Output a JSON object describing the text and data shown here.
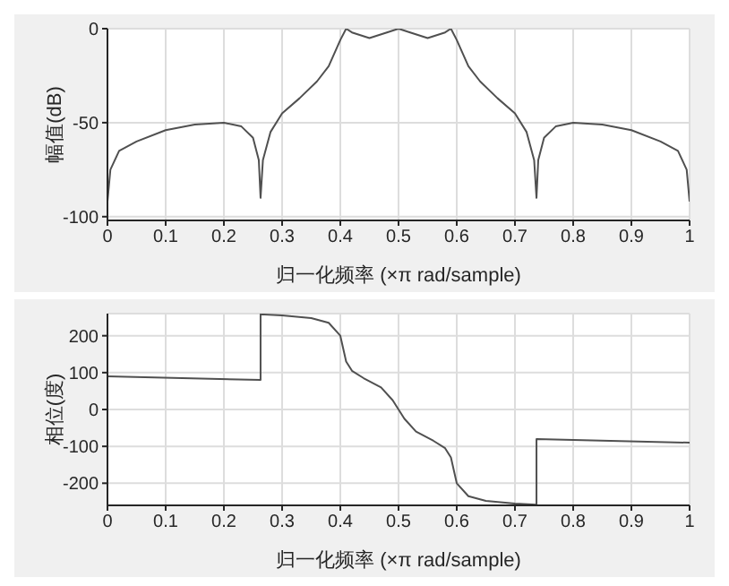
{
  "chart_data": [
    {
      "type": "line",
      "xlabel": "归一化频率  (×π rad/sample)",
      "ylabel": "幅值(dB)",
      "color": "#505050",
      "grid": true,
      "xlim": [
        0,
        1
      ],
      "xticks": [
        0,
        0.1,
        0.2,
        0.3,
        0.4,
        0.5,
        0.6,
        0.7,
        0.8,
        0.9,
        1
      ],
      "ylim": [
        -102,
        0
      ],
      "yticks": [
        -100,
        -50,
        0
      ],
      "x": [
        0,
        0.005,
        0.02,
        0.05,
        0.1,
        0.15,
        0.2,
        0.23,
        0.25,
        0.26,
        0.263,
        0.267,
        0.28,
        0.3,
        0.33,
        0.36,
        0.38,
        0.4,
        0.41,
        0.42,
        0.45,
        0.48,
        0.5,
        0.52,
        0.55,
        0.58,
        0.59,
        0.6,
        0.62,
        0.64,
        0.67,
        0.7,
        0.72,
        0.733,
        0.737,
        0.74,
        0.75,
        0.77,
        0.8,
        0.85,
        0.9,
        0.95,
        0.98,
        0.995,
        1
      ],
      "values": [
        -92,
        -75,
        -65,
        -60,
        -54,
        -51,
        -50,
        -52,
        -58,
        -70,
        -90,
        -70,
        -55,
        -45,
        -37,
        -28,
        -20,
        -6,
        0,
        -2,
        -5,
        -2,
        0,
        -2,
        -5,
        -2,
        0,
        -6,
        -20,
        -28,
        -37,
        -45,
        -55,
        -70,
        -90,
        -70,
        -58,
        -52,
        -50,
        -51,
        -54,
        -60,
        -65,
        -75,
        -92
      ]
    },
    {
      "type": "line",
      "xlabel": "归一化频率  (×π rad/sample)",
      "ylabel": "相位(度)",
      "color": "#505050",
      "grid": true,
      "xlim": [
        0,
        1
      ],
      "xticks": [
        0,
        0.1,
        0.2,
        0.3,
        0.4,
        0.5,
        0.6,
        0.7,
        0.8,
        0.9,
        1
      ],
      "ylim": [
        -260,
        260
      ],
      "yticks": [
        -200,
        -100,
        0,
        100,
        200
      ],
      "x": [
        0,
        0.263,
        0.263,
        0.3,
        0.35,
        0.38,
        0.4,
        0.41,
        0.42,
        0.44,
        0.47,
        0.49,
        0.5,
        0.51,
        0.53,
        0.56,
        0.58,
        0.59,
        0.6,
        0.62,
        0.65,
        0.7,
        0.737,
        0.737,
        1
      ],
      "values": [
        90,
        80,
        258,
        255,
        248,
        235,
        200,
        130,
        105,
        85,
        60,
        25,
        0,
        -25,
        -60,
        -85,
        -105,
        -130,
        -200,
        -235,
        -248,
        -255,
        -258,
        -80,
        -90
      ]
    }
  ]
}
